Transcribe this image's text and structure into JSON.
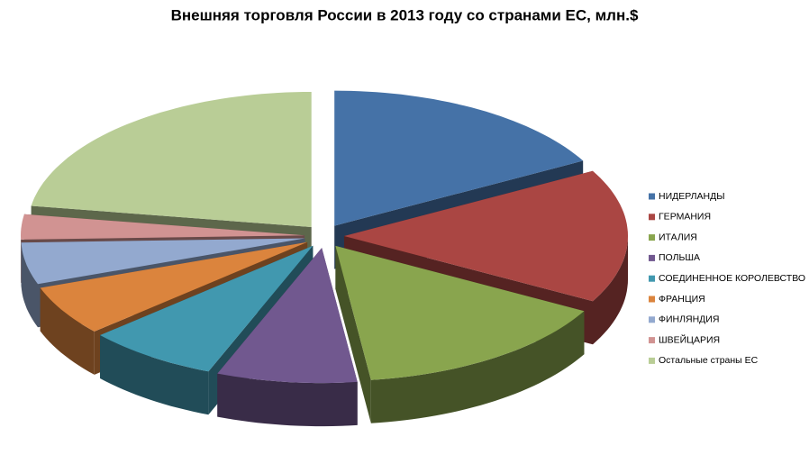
{
  "chart_data": {
    "type": "pie3d",
    "title": "Внешняя торговля России в 2013 году со странами ЕС, млн.$",
    "categories": [
      "НИДЕРЛАНДЫ",
      "ГЕРМАНИЯ",
      "ИТАЛИЯ",
      "ПОЛЬША",
      "СОЕДИНЕННОЕ КОРОЛЕВСТВО",
      "ФРАНЦИЯ",
      "ФИНЛЯНДИЯ",
      "ШВЕЙЦАРИЯ",
      "Остальные страны ЕС"
    ],
    "values": [
      17,
      16,
      15,
      8,
      7.5,
      6,
      5,
      3,
      22.5
    ],
    "colors": [
      "#4572a7",
      "#aa4643",
      "#89a54e",
      "#71588f",
      "#4198af",
      "#db843d",
      "#93a9cf",
      "#d19392",
      "#b9cd96"
    ],
    "legend": "right"
  }
}
